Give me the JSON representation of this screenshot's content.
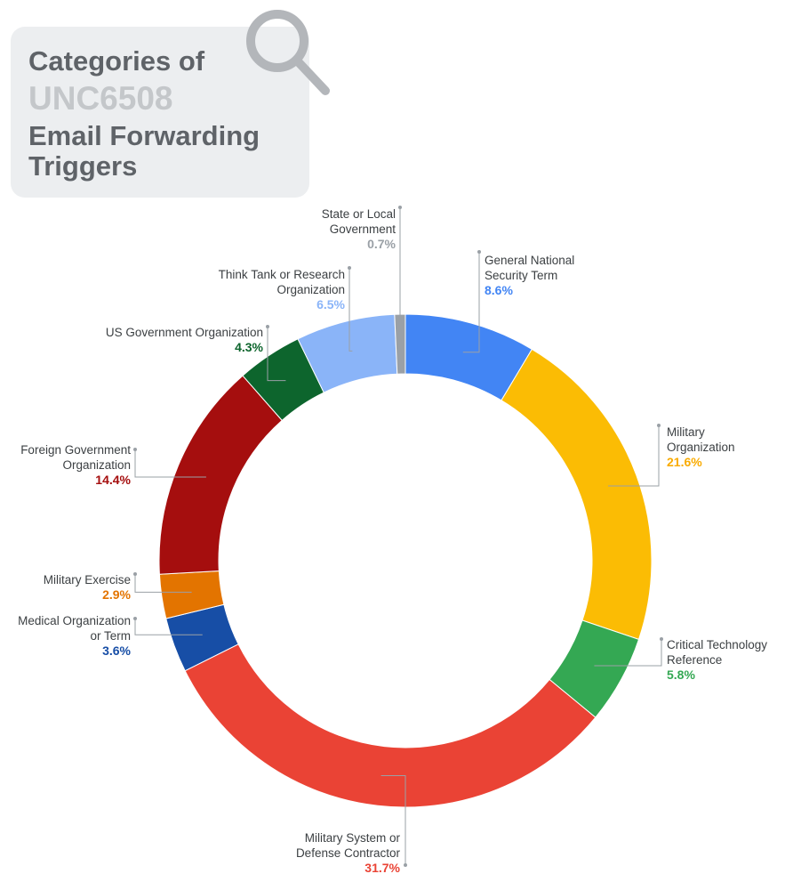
{
  "chart_data": {
    "type": "donut",
    "title": [
      "Categories of",
      "UNC6508",
      "Email Forwarding Triggers"
    ],
    "categories": [
      "General National Security Term",
      "Military Organization",
      "Critical Technology Reference",
      "Military System or Defense Contractor",
      "Medical Organization or Term",
      "Military Exercise",
      "Foreign Government Organization",
      "US Government Organization",
      "Think Tank or Research Organization",
      "State or Local Government"
    ],
    "values": [
      8.6,
      21.6,
      5.8,
      31.7,
      3.6,
      2.9,
      14.4,
      4.3,
      6.5,
      0.7
    ],
    "value_labels": [
      "8.6%",
      "21.6%",
      "5.8%",
      "31.7%",
      "3.6%",
      "2.9%",
      "14.4%",
      "4.3%",
      "6.5%",
      "0.7%"
    ],
    "colors": [
      "#4285f4",
      "#fbbc04",
      "#34a853",
      "#ea4335",
      "#174ea6",
      "#e37400",
      "#a50e0e",
      "#0d652d",
      "#8ab4f8",
      "#9aa0a6"
    ],
    "label_colors": [
      "#4285f4",
      "#f9ab00",
      "#34a853",
      "#ea4335",
      "#174ea6",
      "#e37400",
      "#a50e0e",
      "#0d652d",
      "#8ab4f8",
      "#9aa0a6"
    ]
  }
}
